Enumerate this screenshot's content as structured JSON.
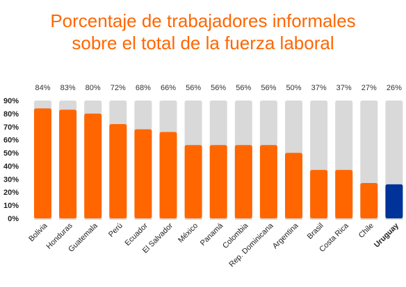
{
  "chart_data": {
    "type": "bar",
    "title_lines": [
      "Porcentaje de trabajadores informales",
      "sobre el total de la fuerza laboral"
    ],
    "categories": [
      "Bolivia",
      "Honduras",
      "Guatemala",
      "Perú",
      "Ecuador",
      "El Salvador",
      "México",
      "Panamá",
      "Colombia",
      "Rep. Dominicana",
      "Argentina",
      "Brasil",
      "Costa Rica",
      "Chile",
      "Uruguay"
    ],
    "values": [
      84,
      83,
      80,
      72,
      68,
      66,
      56,
      56,
      56,
      56,
      50,
      37,
      37,
      27,
      26
    ],
    "value_labels": [
      "84%",
      "83%",
      "80%",
      "72%",
      "68%",
      "66%",
      "56%",
      "56%",
      "56%",
      "56%",
      "50%",
      "37%",
      "37%",
      "27%",
      "26%"
    ],
    "y_ticks": [
      "0%",
      "10%",
      "20%",
      "30%",
      "40%",
      "50%",
      "60%",
      "70%",
      "80%",
      "90%"
    ],
    "ylim": [
      0,
      90
    ],
    "background_bar_value": 90,
    "highlight_category": "Uruguay",
    "colors": {
      "bar": "#ff6600",
      "highlight_bar": "#003399",
      "background_bar": "#d9d9d9",
      "title": "#ff6600",
      "highlight_label": "#003399"
    },
    "grid": false,
    "legend": "none"
  }
}
